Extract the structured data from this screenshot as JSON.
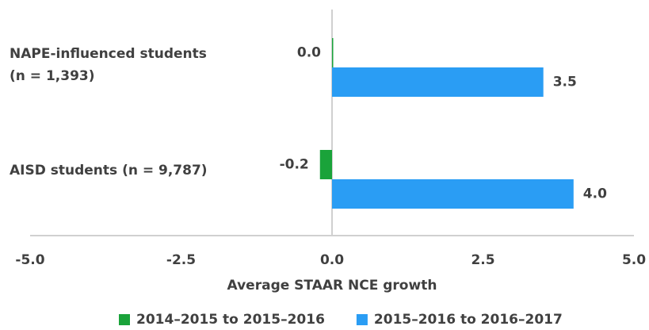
{
  "chart_data": {
    "type": "hbar",
    "categories": [
      "NAPE-influenced students (n = 1,393)",
      "AISD students (n = 9,787)"
    ],
    "series": [
      {
        "name": "2014–2015 to 2015–2016",
        "color": "#1aa33a",
        "values": [
          0.0,
          -0.2
        ],
        "value_labels": [
          "0.0",
          "-0.2"
        ]
      },
      {
        "name": "2015–2016 to 2016–2017",
        "color": "#2a9df4",
        "values": [
          3.5,
          4.0
        ],
        "value_labels": [
          "3.5",
          "4.0"
        ]
      }
    ],
    "xlabel": "Average STAAR NCE growth",
    "xlim": [
      -5,
      5
    ],
    "xticks": [
      {
        "value": -5,
        "label": "-5.0"
      },
      {
        "value": -2.5,
        "label": "-2.5"
      },
      {
        "value": 0,
        "label": "0.0"
      },
      {
        "value": 2.5,
        "label": "2.5"
      },
      {
        "value": 5,
        "label": "5.0"
      }
    ],
    "legend": "bottom"
  }
}
